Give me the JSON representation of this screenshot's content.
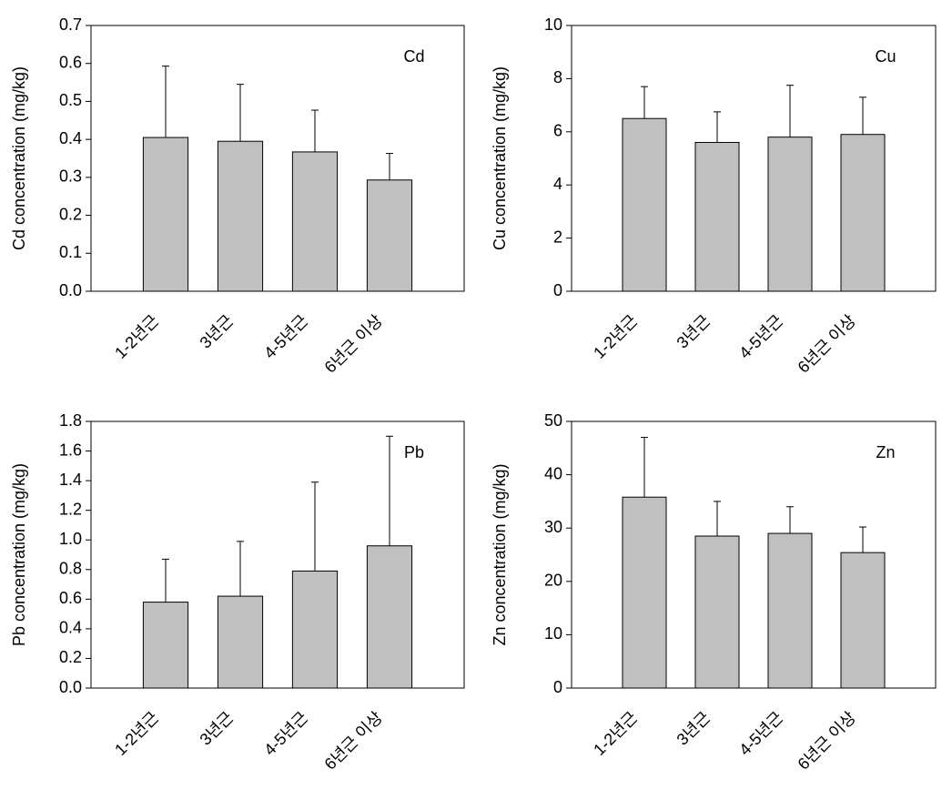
{
  "chart_data": [
    {
      "type": "bar",
      "ylabel": "Cd concentration (mg/kg)",
      "annotation": "Cd",
      "categories": [
        "1-2년근",
        "3년근",
        "4-5년근",
        "6년근 이상"
      ],
      "values": [
        0.405,
        0.395,
        0.367,
        0.293
      ],
      "errors": [
        0.188,
        0.15,
        0.11,
        0.07
      ],
      "color": "#c0c0c0",
      "ylim": [
        0,
        0.7
      ],
      "yticks": [
        {
          "value": 0,
          "label": "0.0"
        },
        0.1,
        0.2,
        0.3,
        0.4,
        0.5,
        0.6,
        0.7
      ]
    },
    {
      "type": "bar",
      "ylabel": "Cu concentration (mg/kg)",
      "annotation": "Cu",
      "categories": [
        "1-2년근",
        "3년근",
        "4-5년근",
        "6년근 이상"
      ],
      "values": [
        6.5,
        5.6,
        5.8,
        5.9
      ],
      "errors": [
        1.2,
        1.15,
        1.95,
        1.4
      ],
      "color": "#c0c0c0",
      "ylim": [
        0,
        10
      ],
      "yticks": [
        0,
        2,
        4,
        6,
        8,
        10
      ]
    },
    {
      "type": "bar",
      "ylabel": "Pb concentration (mg/kg)",
      "annotation": "Pb",
      "categories": [
        "1-2년근",
        "3년근",
        "4-5년근",
        "6년근 이상"
      ],
      "values": [
        0.58,
        0.62,
        0.79,
        0.96
      ],
      "errors": [
        0.29,
        0.37,
        0.6,
        0.74
      ],
      "color": "#c0c0c0",
      "ylim": [
        0,
        1.8
      ],
      "yticks": [
        {
          "value": 0,
          "label": "0.0"
        },
        0.2,
        0.4,
        0.6,
        0.8,
        {
          "value": 1,
          "label": "1.0"
        },
        1.2,
        1.4,
        1.6,
        1.8
      ]
    },
    {
      "type": "bar",
      "ylabel": "Zn concentration (mg/kg)",
      "annotation": "Zn",
      "categories": [
        "1-2년근",
        "3년근",
        "4-5년근",
        "6년근 이상"
      ],
      "values": [
        35.8,
        28.5,
        29,
        25.4
      ],
      "errors": [
        11.2,
        6.5,
        5,
        4.8
      ],
      "color": "#c0c0c0",
      "ylim": [
        0,
        50
      ],
      "yticks": [
        0,
        10,
        20,
        30,
        40,
        50
      ]
    }
  ]
}
